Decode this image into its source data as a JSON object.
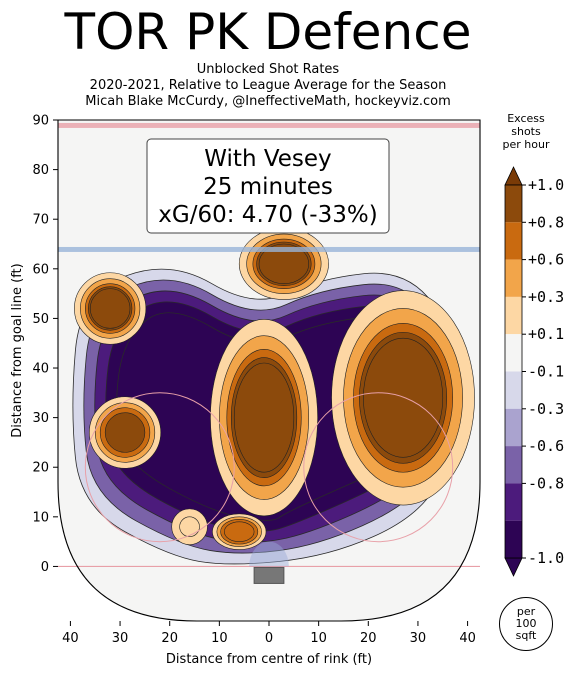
{
  "header": {
    "title": "TOR PK Defence",
    "subtitle_lines": [
      "Unblocked Shot Rates",
      "2020-2021, Relative to League Average for the Season",
      "Micah Blake McCurdy, @IneffectiveMath, hockeyviz.com"
    ]
  },
  "infobox": {
    "line1": "With Vesey",
    "line2": "25 minutes",
    "line3": "xG/60: 4.70 (-33%)"
  },
  "colorbar": {
    "title_lines": [
      "Excess",
      "shots",
      "per hour"
    ],
    "levels": [
      {
        "label": "+1.0",
        "color": "#8c4a0c"
      },
      {
        "label": "+0.8",
        "color": "#c96a10"
      },
      {
        "label": "+0.6",
        "color": "#f2a54a"
      },
      {
        "label": "+0.3",
        "color": "#fdd7a4"
      },
      {
        "label": "+0.1",
        "color": "#f5f5f4"
      },
      {
        "label": "-0.1",
        "color": "#d7d8ea"
      },
      {
        "label": "-0.3",
        "color": "#aaa3cf"
      },
      {
        "label": "-0.6",
        "color": "#7a62a8"
      },
      {
        "label": "-0.8",
        "color": "#4c1b7c"
      },
      {
        "label": "-1.0",
        "color": "#2d0454"
      }
    ],
    "top_arrow_color": "#7a3b07",
    "bottom_arrow_color": "#2d0454"
  },
  "per_unit": {
    "line1": "per",
    "line2": "100",
    "line3": "sqft"
  },
  "chart_data": {
    "type": "heatmap",
    "title": "TOR PK Defence",
    "xlabel": "Distance from centre of rink (ft)",
    "ylabel": "Distance from goal line (ft)",
    "xlim": [
      -42.5,
      42.5
    ],
    "ylim": [
      -11,
      90
    ],
    "xticks": [
      40,
      30,
      20,
      10,
      0,
      10,
      20,
      30,
      40
    ],
    "xtick_values": [
      -40,
      -30,
      -20,
      -10,
      0,
      10,
      20,
      30,
      40
    ],
    "yticks": [
      0,
      10,
      20,
      30,
      40,
      50,
      60,
      70,
      80,
      90
    ],
    "blue_line_y": 64,
    "red_line_y": 89,
    "faceoff_circles": [
      {
        "x": -22,
        "y": 20,
        "r": 15
      },
      {
        "x": 22,
        "y": 20,
        "r": 15
      }
    ],
    "zmin": -1.0,
    "zmax": 1.0,
    "hot_spots": [
      {
        "x": 3,
        "y": 61,
        "rx": 5,
        "ry": 4,
        "value": 1.0
      },
      {
        "x": -32,
        "y": 52,
        "rx": 4,
        "ry": 4,
        "value": 0.9
      },
      {
        "x": -29,
        "y": 27,
        "rx": 4,
        "ry": 4,
        "value": 0.8
      },
      {
        "x": -1,
        "y": 30,
        "rx": 6,
        "ry": 11,
        "value": 1.0
      },
      {
        "x": 27,
        "y": 34,
        "rx": 8,
        "ry": 12,
        "value": 1.0
      },
      {
        "x": -6,
        "y": 7,
        "rx": 3,
        "ry": 2,
        "value": 0.7
      },
      {
        "x": -16,
        "y": 8,
        "rx": 2,
        "ry": 2,
        "value": 0.3
      }
    ],
    "cold_region_value": -1.0
  }
}
